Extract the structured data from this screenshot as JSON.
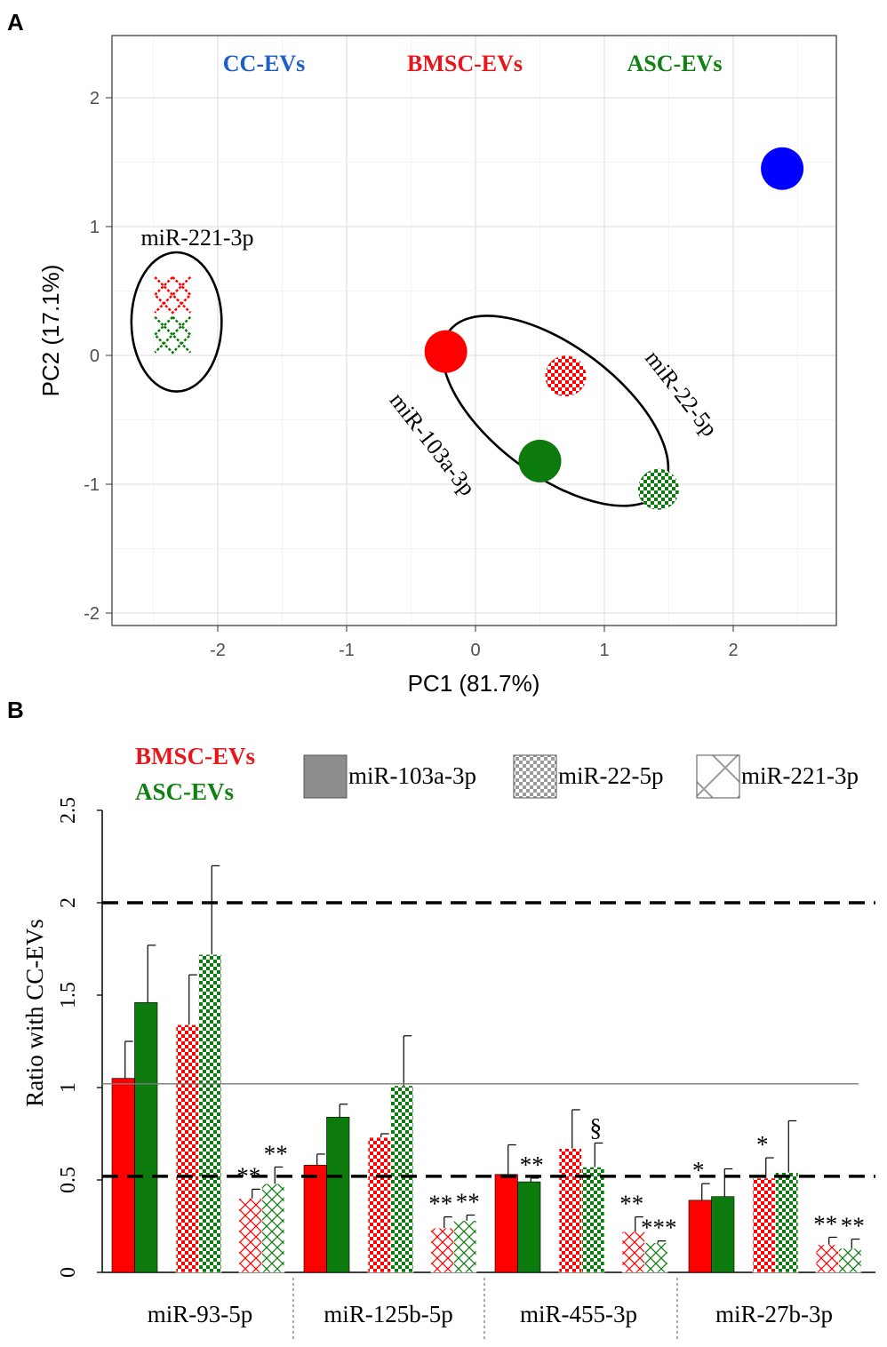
{
  "panel_a": {
    "label": "A",
    "legend_titles": [
      {
        "text": "CC-EVs",
        "color": "#1f5fc8"
      },
      {
        "text": "BMSC-EVs",
        "color": "#e8161b"
      },
      {
        "text": "ASC-EVs",
        "color": "#128012"
      }
    ],
    "cluster_labels": {
      "left": "miR-221-3p",
      "diag1": "miR-103a-3p",
      "diag2": "miR-22-5p"
    }
  },
  "panel_b": {
    "label": "B",
    "group_titles": [
      {
        "text": "BMSC-EVs",
        "color": "#e8161b"
      },
      {
        "text": "ASC-EVs",
        "color": "#128012"
      }
    ],
    "legend": [
      {
        "key": "solid",
        "label": "miR-103a-3p"
      },
      {
        "key": "checker",
        "label": "miR-22-5p"
      },
      {
        "key": "cross",
        "label": "miR-221-3p"
      }
    ]
  },
  "chart_data": [
    {
      "type": "scatter",
      "title": "",
      "xlabel": "PC1 (81.7%)",
      "ylabel": "PC2 (17.1%)",
      "xlim": [
        -2.8,
        2.8
      ],
      "ylim": [
        -2.2,
        2.5
      ],
      "xticks": [
        -2,
        -1,
        0,
        1,
        2
      ],
      "yticks": [
        -2,
        -1,
        0,
        1,
        2
      ],
      "xticklabels": [
        "-2",
        "-1",
        "0",
        "1",
        "2"
      ],
      "yticklabels": [
        "-2",
        "-1",
        "0",
        "1",
        "2"
      ],
      "grid": true,
      "points": [
        {
          "x": 2.38,
          "y": 1.45,
          "group": "CC-EVs",
          "color": "#0000ff",
          "shape": "solid"
        },
        {
          "x": -0.23,
          "y": 0.03,
          "group": "BMSC-EVs",
          "color": "#ff0000",
          "shape": "solid",
          "mirna": "miR-103a-3p"
        },
        {
          "x": 0.5,
          "y": -0.82,
          "group": "ASC-EVs",
          "color": "#0c7a0c",
          "shape": "solid",
          "mirna": "miR-103a-3p"
        },
        {
          "x": 0.7,
          "y": -0.16,
          "group": "BMSC-EVs",
          "color": "#ff0000",
          "shape": "checker",
          "mirna": "miR-22-5p"
        },
        {
          "x": 1.42,
          "y": -1.04,
          "group": "ASC-EVs",
          "color": "#0c7a0c",
          "shape": "checker",
          "mirna": "miR-22-5p"
        },
        {
          "x": -2.35,
          "y": 0.47,
          "group": "BMSC-EVs",
          "color": "#ff0000",
          "shape": "cross",
          "mirna": "miR-221-3p"
        },
        {
          "x": -2.35,
          "y": 0.16,
          "group": "ASC-EVs",
          "color": "#0c7a0c",
          "shape": "cross",
          "mirna": "miR-221-3p"
        }
      ],
      "ellipses": [
        {
          "cx": -2.32,
          "cy": 0.26,
          "rx": 0.35,
          "ry": 0.54,
          "angle": 0
        },
        {
          "cx": 0.62,
          "cy": -0.43,
          "rx": 1.03,
          "ry": 0.5,
          "angle": 37
        }
      ]
    },
    {
      "type": "bar",
      "title": "",
      "xlabel": "",
      "ylabel": "Ratio with CC-EVs",
      "ylim": [
        0,
        2.5
      ],
      "yticks": [
        0,
        0.5,
        1,
        1.5,
        2,
        2.5
      ],
      "yticklabels": [
        "0",
        "0.5",
        "1",
        "1.5",
        "2",
        "2.5"
      ],
      "categories": [
        "miR-93-5p",
        "miR-125b-5p",
        "miR-455-3p",
        "miR-27b-3p"
      ],
      "reference_lines": [
        {
          "y": 2.0,
          "style": "dashed"
        },
        {
          "y": 1.02,
          "style": "solid"
        },
        {
          "y": 0.52,
          "style": "dashed"
        }
      ],
      "bars": [
        {
          "category": "miR-93-5p",
          "mirna": "miR-103a-3p",
          "group": "BMSC-EVs",
          "pattern": "solid",
          "value": 1.05,
          "err": 0.2,
          "sig": ""
        },
        {
          "category": "miR-93-5p",
          "mirna": "miR-103a-3p",
          "group": "ASC-EVs",
          "pattern": "solid",
          "value": 1.46,
          "err": 0.31,
          "sig": ""
        },
        {
          "category": "miR-93-5p",
          "mirna": "miR-22-5p",
          "group": "BMSC-EVs",
          "pattern": "checker",
          "value": 1.34,
          "err": 0.27,
          "sig": ""
        },
        {
          "category": "miR-93-5p",
          "mirna": "miR-22-5p",
          "group": "ASC-EVs",
          "pattern": "checker",
          "value": 1.72,
          "err": 0.48,
          "sig": ""
        },
        {
          "category": "miR-93-5p",
          "mirna": "miR-221-3p",
          "group": "BMSC-EVs",
          "pattern": "cross",
          "value": 0.4,
          "err": 0.05,
          "sig": "**"
        },
        {
          "category": "miR-93-5p",
          "mirna": "miR-221-3p",
          "group": "ASC-EVs",
          "pattern": "cross",
          "value": 0.48,
          "err": 0.09,
          "sig": "**"
        },
        {
          "category": "miR-125b-5p",
          "mirna": "miR-103a-3p",
          "group": "BMSC-EVs",
          "pattern": "solid",
          "value": 0.58,
          "err": 0.06,
          "sig": ""
        },
        {
          "category": "miR-125b-5p",
          "mirna": "miR-103a-3p",
          "group": "ASC-EVs",
          "pattern": "solid",
          "value": 0.84,
          "err": 0.07,
          "sig": ""
        },
        {
          "category": "miR-125b-5p",
          "mirna": "miR-22-5p",
          "group": "BMSC-EVs",
          "pattern": "checker",
          "value": 0.73,
          "err": 0.02,
          "sig": ""
        },
        {
          "category": "miR-125b-5p",
          "mirna": "miR-22-5p",
          "group": "ASC-EVs",
          "pattern": "checker",
          "value": 1.01,
          "err": 0.27,
          "sig": ""
        },
        {
          "category": "miR-125b-5p",
          "mirna": "miR-221-3p",
          "group": "BMSC-EVs",
          "pattern": "cross",
          "value": 0.24,
          "err": 0.06,
          "sig": "**"
        },
        {
          "category": "miR-125b-5p",
          "mirna": "miR-221-3p",
          "group": "ASC-EVs",
          "pattern": "cross",
          "value": 0.28,
          "err": 0.03,
          "sig": "**"
        },
        {
          "category": "miR-455-3p",
          "mirna": "miR-103a-3p",
          "group": "BMSC-EVs",
          "pattern": "solid",
          "value": 0.53,
          "err": 0.16,
          "sig": ""
        },
        {
          "category": "miR-455-3p",
          "mirna": "miR-103a-3p",
          "group": "ASC-EVs",
          "pattern": "solid",
          "value": 0.49,
          "err": 0.02,
          "sig": "**"
        },
        {
          "category": "miR-455-3p",
          "mirna": "miR-22-5p",
          "group": "BMSC-EVs",
          "pattern": "checker",
          "value": 0.67,
          "err": 0.21,
          "sig": ""
        },
        {
          "category": "miR-455-3p",
          "mirna": "miR-22-5p",
          "group": "ASC-EVs",
          "pattern": "checker",
          "value": 0.57,
          "err": 0.13,
          "sig": "§"
        },
        {
          "category": "miR-455-3p",
          "mirna": "miR-221-3p",
          "group": "BMSC-EVs",
          "pattern": "cross",
          "value": 0.22,
          "err": 0.08,
          "sig": "**"
        },
        {
          "category": "miR-455-3p",
          "mirna": "miR-221-3p",
          "group": "ASC-EVs",
          "pattern": "cross",
          "value": 0.16,
          "err": 0.01,
          "sig": "***"
        },
        {
          "category": "miR-27b-3p",
          "mirna": "miR-103a-3p",
          "group": "BMSC-EVs",
          "pattern": "solid",
          "value": 0.39,
          "err": 0.09,
          "sig": "*"
        },
        {
          "category": "miR-27b-3p",
          "mirna": "miR-103a-3p",
          "group": "ASC-EVs",
          "pattern": "solid",
          "value": 0.41,
          "err": 0.15,
          "sig": ""
        },
        {
          "category": "miR-27b-3p",
          "mirna": "miR-22-5p",
          "group": "BMSC-EVs",
          "pattern": "checker",
          "value": 0.51,
          "err": 0.11,
          "sig": "*"
        },
        {
          "category": "miR-27b-3p",
          "mirna": "miR-22-5p",
          "group": "ASC-EVs",
          "pattern": "checker",
          "value": 0.54,
          "err": 0.28,
          "sig": ""
        },
        {
          "category": "miR-27b-3p",
          "mirna": "miR-221-3p",
          "group": "BMSC-EVs",
          "pattern": "cross",
          "value": 0.15,
          "err": 0.04,
          "sig": "**"
        },
        {
          "category": "miR-27b-3p",
          "mirna": "miR-221-3p",
          "group": "ASC-EVs",
          "pattern": "cross",
          "value": 0.13,
          "err": 0.05,
          "sig": "**"
        }
      ],
      "colors": {
        "BMSC-EVs": "#ff0000",
        "ASC-EVs": "#0c7a0c",
        "legend": "#8c8c8c"
      }
    }
  ]
}
